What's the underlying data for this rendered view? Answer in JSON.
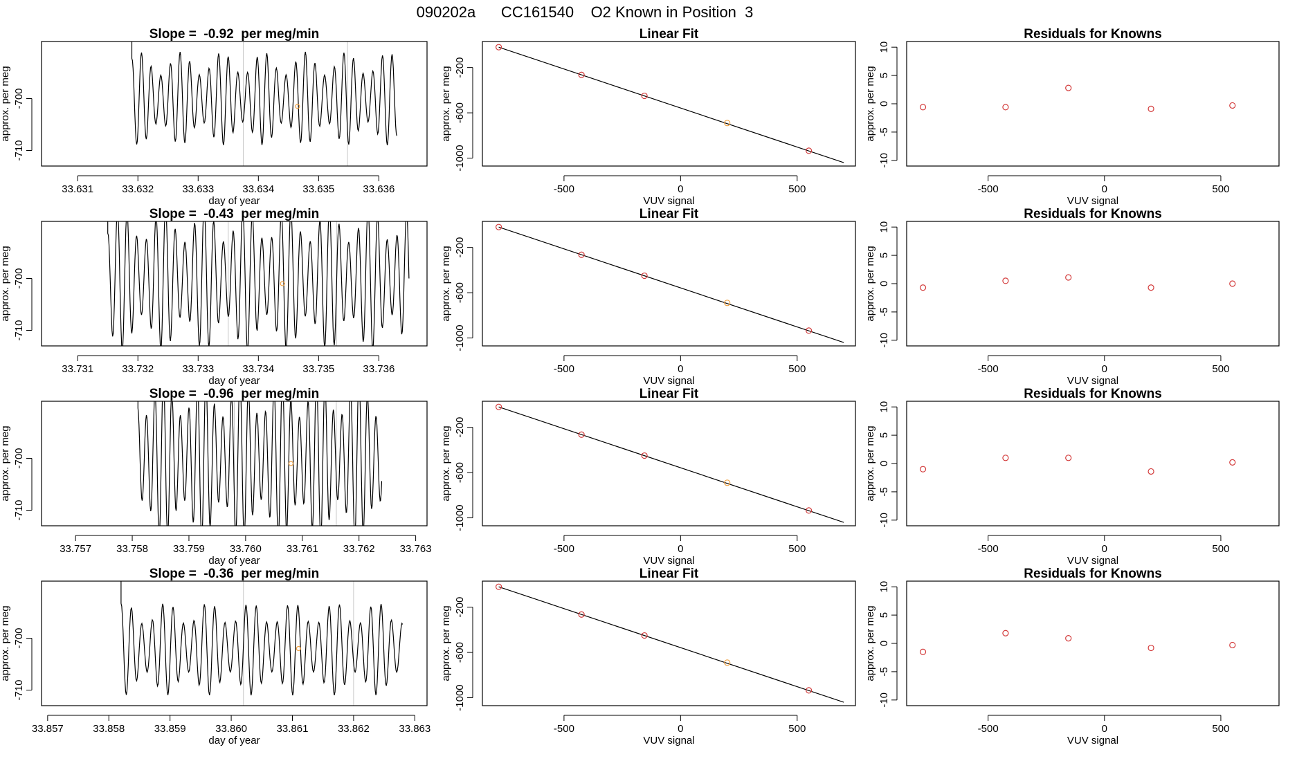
{
  "page_title": "090202a      CC161540    O2 Known in Position  3",
  "colors": {
    "line": "#000000",
    "point_red": "#d33b3b",
    "point_orange": "#f0a040",
    "box": "#000000",
    "vline": "#c8c8c8"
  },
  "chart_data": [
    {
      "type": "line",
      "panel": "trace",
      "row": 1,
      "title": "Slope =  -0.92  per meg/min",
      "xlabel": "day of year",
      "ylabel": "approx. per meg",
      "xlim": [
        33.6304,
        33.6368
      ],
      "ylim": [
        -713,
        -689
      ],
      "xticks": [
        "33.631",
        "33.632",
        "33.633",
        "33.634",
        "33.635",
        "33.636"
      ],
      "xtick_values": [
        33.631,
        33.632,
        33.633,
        33.634,
        33.635,
        33.636
      ],
      "yticks": [
        "-700",
        "-710"
      ],
      "ytick_values": [
        -700,
        -710
      ],
      "trace": {
        "start": 33.6319,
        "end": 33.6363,
        "mid": -700,
        "amp": 9,
        "period": 0.00016
      },
      "vlines": [
        33.63375,
        33.63548
      ],
      "marker": {
        "x": 33.63465,
        "y": -701.5
      }
    },
    {
      "type": "scatter",
      "panel": "fit",
      "row": 1,
      "title": "Linear Fit",
      "xlabel": "VUV signal",
      "ylabel": "approx. per meg",
      "xlim": [
        -850,
        750
      ],
      "ylim": [
        -1070,
        30
      ],
      "xticks": [
        "-500",
        "0",
        "500"
      ],
      "xtick_values": [
        -500,
        0,
        500
      ],
      "yticks": [
        "-200",
        "-600",
        "-1000"
      ],
      "ytick_values": [
        -200,
        -600,
        -1000
      ],
      "fit_line": {
        "x": [
          -780,
          700
        ],
        "y": [
          -20,
          -1040
        ]
      },
      "points": [
        {
          "x": -780,
          "y": -20
        },
        {
          "x": -425,
          "y": -265
        },
        {
          "x": -155,
          "y": -450
        },
        {
          "x": 200,
          "y": -690,
          "highlight": true
        },
        {
          "x": 550,
          "y": -935
        }
      ]
    },
    {
      "type": "scatter",
      "panel": "residuals",
      "row": 1,
      "title": "Residuals for Knowns",
      "xlabel": "VUV signal",
      "ylabel": "approx. per meg",
      "xlim": [
        -850,
        750
      ],
      "ylim": [
        -11,
        11
      ],
      "xticks": [
        "-500",
        "0",
        "500"
      ],
      "xtick_values": [
        -500,
        0,
        500
      ],
      "yticks": [
        "-10",
        "-5",
        "0",
        "5",
        "10"
      ],
      "ytick_values": [
        -10,
        -5,
        0,
        5,
        10
      ],
      "points": [
        {
          "x": -780,
          "y": -0.6
        },
        {
          "x": -425,
          "y": -0.6
        },
        {
          "x": -155,
          "y": 2.8
        },
        {
          "x": 200,
          "y": -0.9
        },
        {
          "x": 550,
          "y": -0.3
        }
      ]
    },
    {
      "type": "line",
      "panel": "trace",
      "row": 2,
      "title": "Slope =  -0.43  per meg/min",
      "xlabel": "day of year",
      "ylabel": "approx. per meg",
      "xlim": [
        33.7304,
        33.7368
      ],
      "ylim": [
        -713,
        -689
      ],
      "xticks": [
        "33.731",
        "33.732",
        "33.733",
        "33.734",
        "33.735",
        "33.736"
      ],
      "xtick_values": [
        33.731,
        33.732,
        33.733,
        33.734,
        33.735,
        33.736
      ],
      "yticks": [
        "-700",
        "-710"
      ],
      "ytick_values": [
        -700,
        -710
      ],
      "trace": {
        "start": 33.7315,
        "end": 33.7365,
        "mid": -700,
        "amp": 14,
        "period": 0.00016
      },
      "vlines": [
        33.7335,
        33.7353
      ],
      "marker": {
        "x": 33.7344,
        "y": -701
      }
    },
    {
      "type": "scatter",
      "panel": "fit",
      "row": 2,
      "title": "Linear Fit",
      "xlabel": "VUV signal",
      "ylabel": "approx. per meg",
      "xlim": [
        -850,
        750
      ],
      "ylim": [
        -1070,
        30
      ],
      "xticks": [
        "-500",
        "0",
        "500"
      ],
      "xtick_values": [
        -500,
        0,
        500
      ],
      "yticks": [
        "-200",
        "-600",
        "-1000"
      ],
      "ytick_values": [
        -200,
        -600,
        -1000
      ],
      "fit_line": {
        "x": [
          -780,
          700
        ],
        "y": [
          -20,
          -1040
        ]
      },
      "points": [
        {
          "x": -780,
          "y": -20
        },
        {
          "x": -425,
          "y": -265
        },
        {
          "x": -155,
          "y": -450
        },
        {
          "x": 200,
          "y": -690,
          "highlight": true
        },
        {
          "x": 550,
          "y": -935
        }
      ]
    },
    {
      "type": "scatter",
      "panel": "residuals",
      "row": 2,
      "title": "Residuals for Knowns",
      "xlabel": "VUV signal",
      "ylabel": "approx. per meg",
      "xlim": [
        -850,
        750
      ],
      "ylim": [
        -11,
        11
      ],
      "xticks": [
        "-500",
        "0",
        "500"
      ],
      "xtick_values": [
        -500,
        0,
        500
      ],
      "yticks": [
        "-10",
        "-5",
        "0",
        "5",
        "10"
      ],
      "ytick_values": [
        -10,
        -5,
        0,
        5,
        10
      ],
      "points": [
        {
          "x": -780,
          "y": -0.7
        },
        {
          "x": -425,
          "y": 0.5
        },
        {
          "x": -155,
          "y": 1.1
        },
        {
          "x": 200,
          "y": -0.7
        },
        {
          "x": 550,
          "y": 0
        }
      ]
    },
    {
      "type": "line",
      "panel": "trace",
      "row": 3,
      "title": "Slope =  -0.96  per meg/min",
      "xlabel": "day of year",
      "ylabel": "approx. per meg",
      "xlim": [
        33.7564,
        33.7632
      ],
      "ylim": [
        -713,
        -689
      ],
      "xticks": [
        "33.757",
        "33.758",
        "33.759",
        "33.760",
        "33.761",
        "33.762",
        "33.763"
      ],
      "xtick_values": [
        33.757,
        33.758,
        33.759,
        33.76,
        33.761,
        33.762,
        33.763
      ],
      "yticks": [
        "-700",
        "-710"
      ],
      "ytick_values": [
        -700,
        -710
      ],
      "trace": {
        "start": 33.7581,
        "end": 33.7624,
        "mid": -700,
        "amp": 16,
        "period": 0.00015
      },
      "vlines": [
        33.7598,
        33.7616
      ],
      "marker": {
        "x": 33.7608,
        "y": -701
      }
    },
    {
      "type": "scatter",
      "panel": "fit",
      "row": 3,
      "title": "Linear Fit",
      "xlabel": "VUV signal",
      "ylabel": "approx. per meg",
      "xlim": [
        -850,
        750
      ],
      "ylim": [
        -1070,
        30
      ],
      "xticks": [
        "-500",
        "0",
        "500"
      ],
      "xtick_values": [
        -500,
        0,
        500
      ],
      "yticks": [
        "-200",
        "-600",
        "-1000"
      ],
      "ytick_values": [
        -200,
        -600,
        -1000
      ],
      "fit_line": {
        "x": [
          -780,
          700
        ],
        "y": [
          -20,
          -1040
        ]
      },
      "points": [
        {
          "x": -780,
          "y": -20
        },
        {
          "x": -425,
          "y": -265
        },
        {
          "x": -155,
          "y": -450
        },
        {
          "x": 200,
          "y": -690,
          "highlight": true
        },
        {
          "x": 550,
          "y": -935
        }
      ]
    },
    {
      "type": "scatter",
      "panel": "residuals",
      "row": 3,
      "title": "Residuals for Knowns",
      "xlabel": "VUV signal",
      "ylabel": "approx. per meg",
      "xlim": [
        -850,
        750
      ],
      "ylim": [
        -11,
        11
      ],
      "xticks": [
        "-500",
        "0",
        "500"
      ],
      "xtick_values": [
        -500,
        0,
        500
      ],
      "yticks": [
        "-10",
        "-5",
        "0",
        "5",
        "10"
      ],
      "ytick_values": [
        -10,
        -5,
        0,
        5,
        10
      ],
      "points": [
        {
          "x": -780,
          "y": -1
        },
        {
          "x": -425,
          "y": 1
        },
        {
          "x": -155,
          "y": 1
        },
        {
          "x": 200,
          "y": -1.4
        },
        {
          "x": 550,
          "y": 0.2
        }
      ]
    },
    {
      "type": "line",
      "panel": "trace",
      "row": 4,
      "title": "Slope =  -0.36  per meg/min",
      "xlabel": "day of year",
      "ylabel": "approx. per meg",
      "xlim": [
        33.8569,
        33.8632
      ],
      "ylim": [
        -713,
        -689
      ],
      "xticks": [
        "33.857",
        "33.858",
        "33.859",
        "33.860",
        "33.861",
        "33.862",
        "33.863"
      ],
      "xtick_values": [
        33.857,
        33.858,
        33.859,
        33.86,
        33.861,
        33.862,
        33.863
      ],
      "yticks": [
        "-700",
        "-710"
      ],
      "ytick_values": [
        -700,
        -710
      ],
      "trace": {
        "start": 33.8582,
        "end": 33.8628,
        "mid": -702,
        "amp": 9,
        "period": 0.00017
      },
      "vlines": [
        33.8602,
        33.862
      ],
      "marker": {
        "x": 33.8611,
        "y": -702
      }
    },
    {
      "type": "scatter",
      "panel": "fit",
      "row": 4,
      "title": "Linear Fit",
      "xlabel": "VUV signal",
      "ylabel": "approx. per meg",
      "xlim": [
        -850,
        750
      ],
      "ylim": [
        -1070,
        30
      ],
      "xticks": [
        "-500",
        "0",
        "500"
      ],
      "xtick_values": [
        -500,
        0,
        500
      ],
      "yticks": [
        "-200",
        "-600",
        "-1000"
      ],
      "ytick_values": [
        -200,
        -600,
        -1000
      ],
      "fit_line": {
        "x": [
          -780,
          700
        ],
        "y": [
          -20,
          -1040
        ]
      },
      "points": [
        {
          "x": -780,
          "y": -20
        },
        {
          "x": -425,
          "y": -265
        },
        {
          "x": -155,
          "y": -450
        },
        {
          "x": 200,
          "y": -690,
          "highlight": true
        },
        {
          "x": 550,
          "y": -935
        }
      ]
    },
    {
      "type": "scatter",
      "panel": "residuals",
      "row": 4,
      "title": "Residuals for Knowns",
      "xlabel": "VUV signal",
      "ylabel": "approx. per meg",
      "xlim": [
        -850,
        750
      ],
      "ylim": [
        -11,
        11
      ],
      "xticks": [
        "-500",
        "0",
        "500"
      ],
      "xtick_values": [
        -500,
        0,
        500
      ],
      "yticks": [
        "-10",
        "-5",
        "0",
        "5",
        "10"
      ],
      "ytick_values": [
        -10,
        -5,
        0,
        5,
        10
      ],
      "points": [
        {
          "x": -780,
          "y": -1.5
        },
        {
          "x": -425,
          "y": 1.8
        },
        {
          "x": -155,
          "y": 0.9
        },
        {
          "x": 200,
          "y": -0.8
        },
        {
          "x": 550,
          "y": -0.3
        }
      ]
    }
  ]
}
